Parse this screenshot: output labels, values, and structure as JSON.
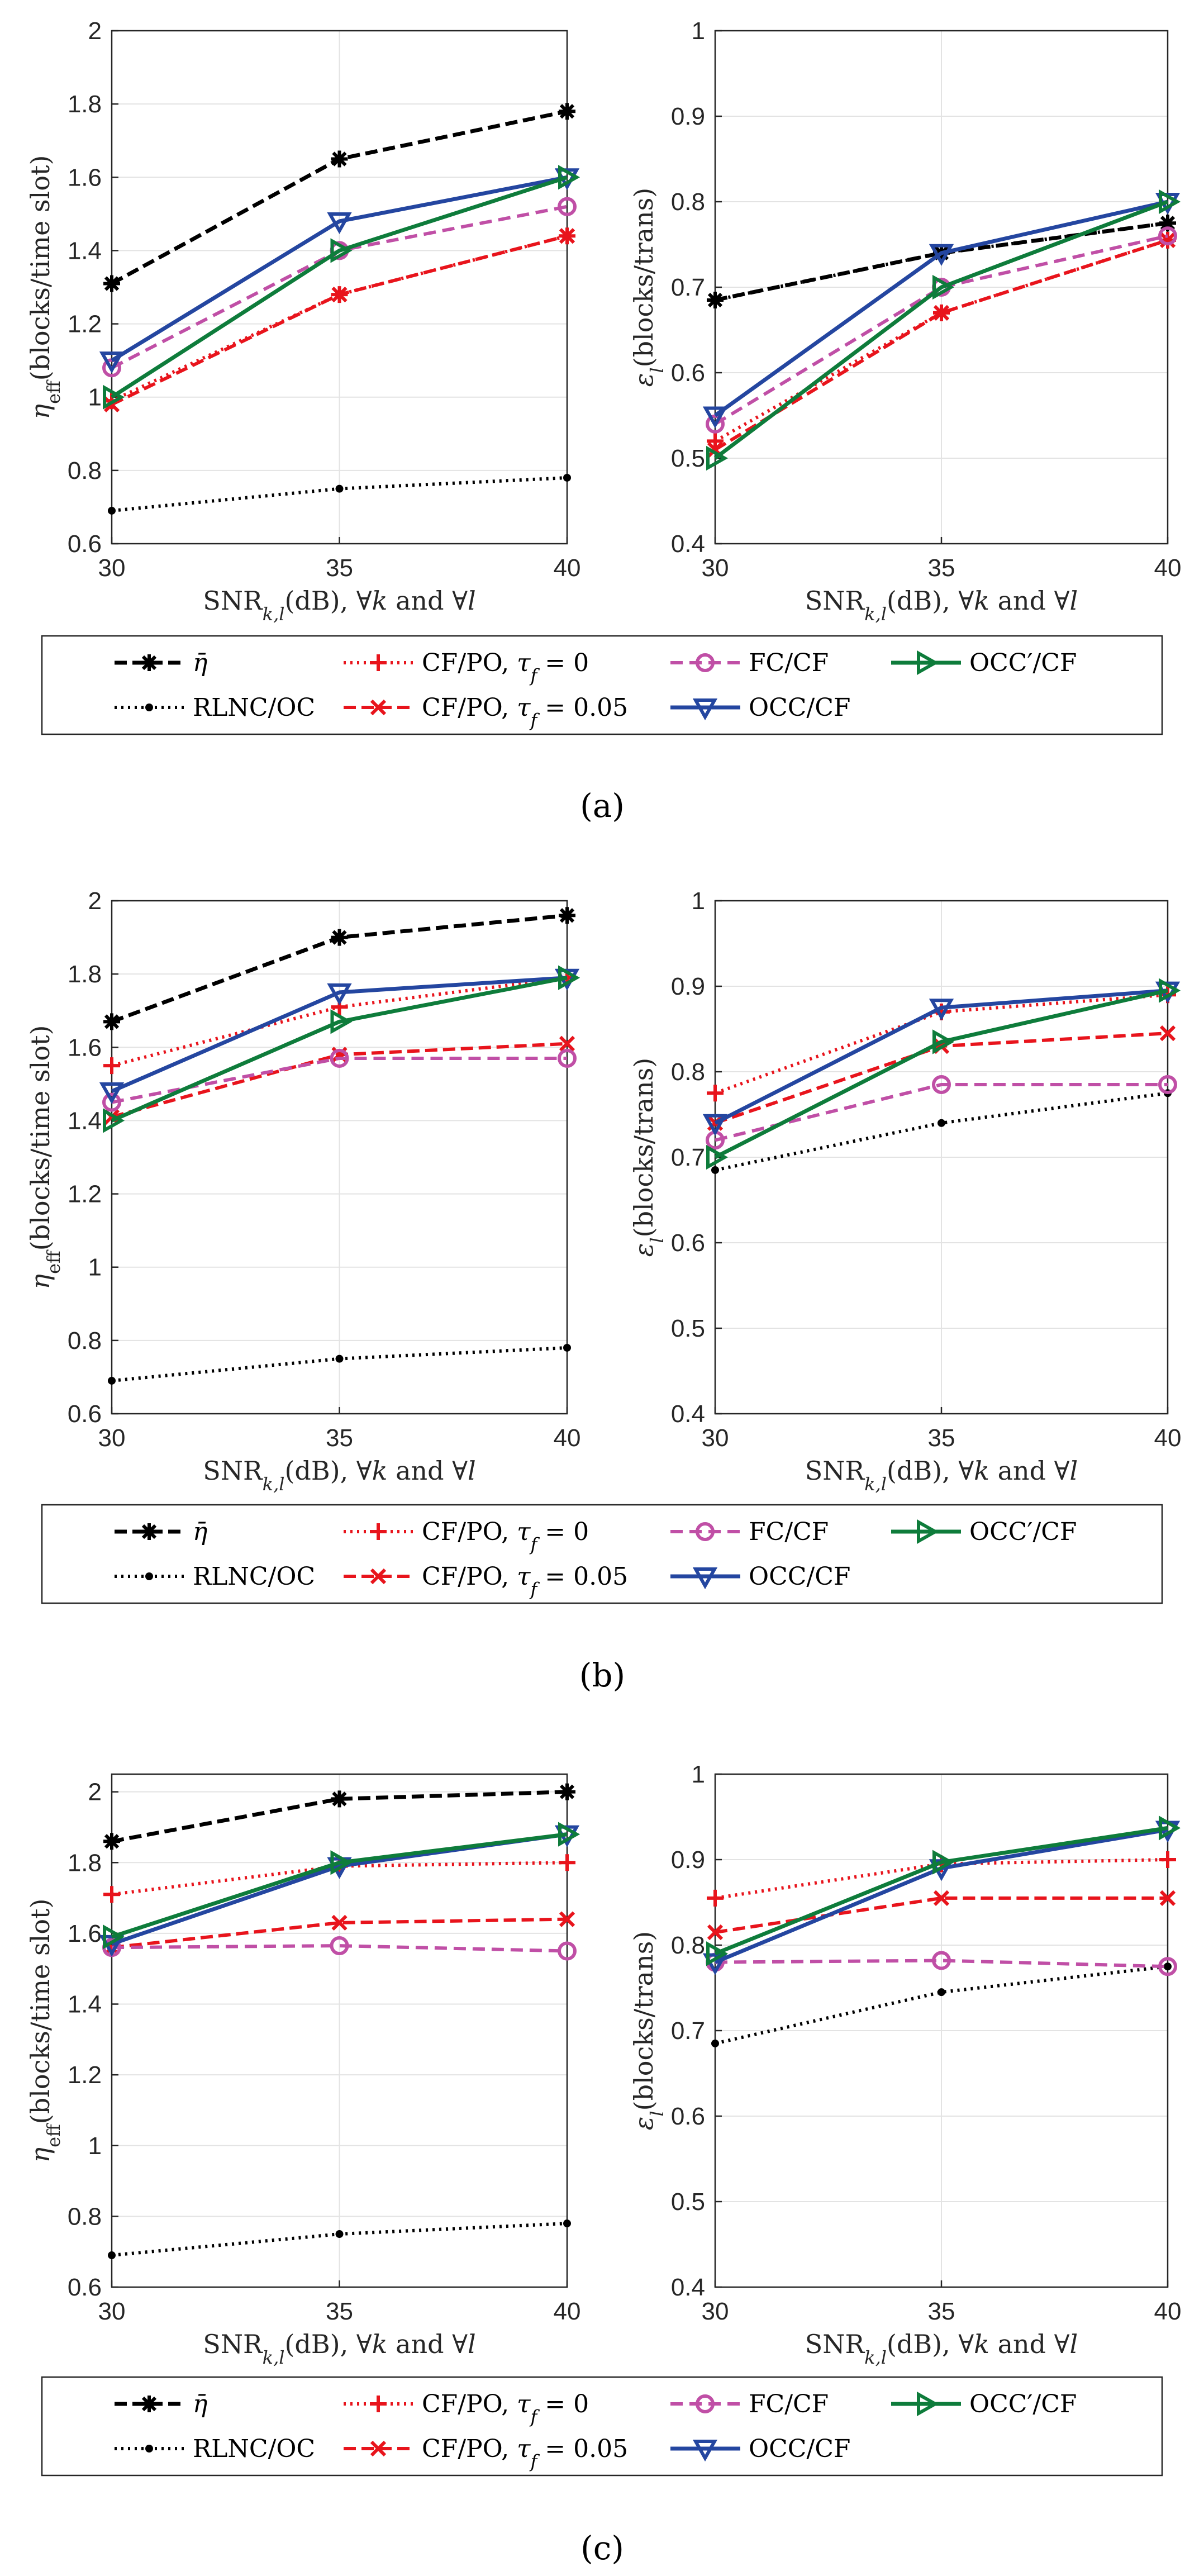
{
  "series_styles": [
    {
      "key": "eta_bar",
      "label": "η̄",
      "color": "#000000",
      "dash": "22,10",
      "marker": "star",
      "width": 7
    },
    {
      "key": "rlnc_oc",
      "label": "RLNC/OC",
      "color": "#000000",
      "dash": "4,8",
      "marker": "dot",
      "width": 6
    },
    {
      "key": "cfpo_0",
      "label": "CF/PO, τf = 0",
      "color": "#e8141c",
      "dash": "4,8",
      "marker": "plus",
      "width": 6
    },
    {
      "key": "cfpo_005",
      "label": "CF/PO, τf = 0.05",
      "color": "#e8141c",
      "dash": "22,10",
      "marker": "x",
      "width": 6
    },
    {
      "key": "fc_cf",
      "label": "FC/CF",
      "color": "#c04fa6",
      "dash": "22,12",
      "marker": "circle",
      "width": 6
    },
    {
      "key": "occ_cf",
      "label": "OCC/CF",
      "color": "#2446a0",
      "dash": "",
      "marker": "tri-down",
      "width": 7
    },
    {
      "key": "occp_cf",
      "label": "OCC′/CF",
      "color": "#0e7c3b",
      "dash": "",
      "marker": "tri-right",
      "width": 7
    }
  ],
  "legend_order": [
    "eta_bar",
    "rlnc_oc",
    "cfpo_0",
    "cfpo_005",
    "fc_cf",
    "occ_cf",
    "occp_cf"
  ],
  "captions": [
    "(a)",
    "(b)",
    "(c)"
  ],
  "chart_data": [
    {
      "type": "line",
      "panel": "a",
      "position": "left",
      "x": [
        30,
        35,
        40
      ],
      "xlim": [
        30,
        40
      ],
      "xticks": [
        30,
        35,
        40
      ],
      "ylim": [
        0.6,
        2
      ],
      "yticks": [
        0.6,
        0.8,
        1,
        1.2,
        1.4,
        1.6,
        1.8,
        2
      ],
      "ytick_labels": [
        "0.6",
        "0.8",
        "1",
        "1.2",
        "1.4",
        "1.6",
        "1.8",
        "2"
      ],
      "ylabel": "ηeff(blocks/time slot)",
      "xlabel": "SNRk,l(dB), ∀k and ∀l",
      "grid": true,
      "series": [
        {
          "key": "eta_bar",
          "values": [
            1.31,
            1.65,
            1.78
          ]
        },
        {
          "key": "rlnc_oc",
          "values": [
            0.69,
            0.75,
            0.78
          ]
        },
        {
          "key": "cfpo_0",
          "values": [
            0.99,
            1.28,
            1.44
          ]
        },
        {
          "key": "cfpo_005",
          "values": [
            0.98,
            1.28,
            1.44
          ]
        },
        {
          "key": "fc_cf",
          "values": [
            1.08,
            1.4,
            1.52
          ]
        },
        {
          "key": "occ_cf",
          "values": [
            1.1,
            1.48,
            1.6
          ]
        },
        {
          "key": "occp_cf",
          "values": [
            1.0,
            1.4,
            1.6
          ]
        }
      ]
    },
    {
      "type": "line",
      "panel": "a",
      "position": "right",
      "x": [
        30,
        35,
        40
      ],
      "xlim": [
        30,
        40
      ],
      "xticks": [
        30,
        35,
        40
      ],
      "ylim": [
        0.4,
        1
      ],
      "yticks": [
        0.4,
        0.5,
        0.6,
        0.7,
        0.8,
        0.9,
        1
      ],
      "ytick_labels": [
        "0.4",
        "0.5",
        "0.6",
        "0.7",
        "0.8",
        "0.9",
        "1"
      ],
      "ylabel": "εl(blocks/trans)",
      "xlabel": "SNRk,l(dB), ∀k and ∀l",
      "grid": true,
      "series": [
        {
          "key": "eta_bar",
          "values": [
            0.685,
            0.74,
            0.775
          ]
        },
        {
          "key": "rlnc_oc",
          "values": [
            0.685,
            0.74,
            0.775
          ]
        },
        {
          "key": "cfpo_0",
          "values": [
            0.52,
            0.67,
            0.755
          ]
        },
        {
          "key": "cfpo_005",
          "values": [
            0.51,
            0.67,
            0.755
          ]
        },
        {
          "key": "fc_cf",
          "values": [
            0.54,
            0.7,
            0.76
          ]
        },
        {
          "key": "occ_cf",
          "values": [
            0.55,
            0.74,
            0.8
          ]
        },
        {
          "key": "occp_cf",
          "values": [
            0.5,
            0.7,
            0.8
          ]
        }
      ]
    },
    {
      "type": "line",
      "panel": "b",
      "position": "left",
      "x": [
        30,
        35,
        40
      ],
      "xlim": [
        30,
        40
      ],
      "xticks": [
        30,
        35,
        40
      ],
      "ylim": [
        0.6,
        2
      ],
      "yticks": [
        0.6,
        0.8,
        1,
        1.2,
        1.4,
        1.6,
        1.8,
        2
      ],
      "ytick_labels": [
        "0.6",
        "0.8",
        "1",
        "1.2",
        "1.4",
        "1.6",
        "1.8",
        "2"
      ],
      "ylabel": "ηeff(blocks/time slot)",
      "xlabel": "SNRk,l(dB), ∀k and ∀l",
      "grid": true,
      "series": [
        {
          "key": "eta_bar",
          "values": [
            1.67,
            1.9,
            1.96
          ]
        },
        {
          "key": "rlnc_oc",
          "values": [
            0.69,
            0.75,
            0.78
          ]
        },
        {
          "key": "cfpo_0",
          "values": [
            1.55,
            1.71,
            1.79
          ]
        },
        {
          "key": "cfpo_005",
          "values": [
            1.41,
            1.58,
            1.61
          ]
        },
        {
          "key": "fc_cf",
          "values": [
            1.45,
            1.57,
            1.57
          ]
        },
        {
          "key": "occ_cf",
          "values": [
            1.48,
            1.75,
            1.79
          ]
        },
        {
          "key": "occp_cf",
          "values": [
            1.4,
            1.67,
            1.79
          ]
        }
      ]
    },
    {
      "type": "line",
      "panel": "b",
      "position": "right",
      "x": [
        30,
        35,
        40
      ],
      "xlim": [
        30,
        40
      ],
      "xticks": [
        30,
        35,
        40
      ],
      "ylim": [
        0.4,
        1
      ],
      "yticks": [
        0.4,
        0.5,
        0.6,
        0.7,
        0.8,
        0.9,
        1
      ],
      "ytick_labels": [
        "0.4",
        "0.5",
        "0.6",
        "0.7",
        "0.8",
        "0.9",
        "1"
      ],
      "ylabel": "εl(blocks/trans)",
      "xlabel": "SNRk,l(dB), ∀k and ∀l",
      "grid": true,
      "series": [
        {
          "key": "rlnc_oc",
          "values": [
            0.685,
            0.74,
            0.775
          ]
        },
        {
          "key": "cfpo_0",
          "values": [
            0.775,
            0.87,
            0.89
          ]
        },
        {
          "key": "cfpo_005",
          "values": [
            0.74,
            0.83,
            0.845
          ]
        },
        {
          "key": "fc_cf",
          "values": [
            0.72,
            0.785,
            0.785
          ]
        },
        {
          "key": "occ_cf",
          "values": [
            0.74,
            0.875,
            0.895
          ]
        },
        {
          "key": "occp_cf",
          "values": [
            0.7,
            0.835,
            0.895
          ]
        }
      ]
    },
    {
      "type": "line",
      "panel": "c",
      "position": "left",
      "x": [
        30,
        35,
        40
      ],
      "xlim": [
        30,
        40
      ],
      "xticks": [
        30,
        35,
        40
      ],
      "ylim": [
        0.6,
        2.05
      ],
      "yticks": [
        0.6,
        0.8,
        1,
        1.2,
        1.4,
        1.6,
        1.8,
        2
      ],
      "ytick_labels": [
        "0.6",
        "0.8",
        "1",
        "1.2",
        "1.4",
        "1.6",
        "1.8",
        "2"
      ],
      "ylabel": "ηeff(blocks/time slot)",
      "xlabel": "SNRk,l(dB), ∀k and ∀l",
      "grid": true,
      "series": [
        {
          "key": "eta_bar",
          "values": [
            1.86,
            1.98,
            2.0
          ]
        },
        {
          "key": "rlnc_oc",
          "values": [
            0.69,
            0.75,
            0.78
          ]
        },
        {
          "key": "cfpo_0",
          "values": [
            1.71,
            1.79,
            1.8
          ]
        },
        {
          "key": "cfpo_005",
          "values": [
            1.56,
            1.63,
            1.64
          ]
        },
        {
          "key": "fc_cf",
          "values": [
            1.56,
            1.565,
            1.55
          ]
        },
        {
          "key": "occ_cf",
          "values": [
            1.57,
            1.79,
            1.88
          ]
        },
        {
          "key": "occp_cf",
          "values": [
            1.59,
            1.8,
            1.88
          ]
        }
      ]
    },
    {
      "type": "line",
      "panel": "c",
      "position": "right",
      "x": [
        30,
        35,
        40
      ],
      "xlim": [
        30,
        40
      ],
      "xticks": [
        30,
        35,
        40
      ],
      "ylim": [
        0.4,
        1
      ],
      "yticks": [
        0.4,
        0.5,
        0.6,
        0.7,
        0.8,
        0.9,
        1
      ],
      "ytick_labels": [
        "0.4",
        "0.5",
        "0.6",
        "0.7",
        "0.8",
        "0.9",
        "1"
      ],
      "ylabel": "εl(blocks/trans)",
      "xlabel": "SNRk,l(dB), ∀k and ∀l",
      "grid": true,
      "series": [
        {
          "key": "rlnc_oc",
          "values": [
            0.685,
            0.745,
            0.775
          ]
        },
        {
          "key": "cfpo_0",
          "values": [
            0.855,
            0.895,
            0.9
          ]
        },
        {
          "key": "cfpo_005",
          "values": [
            0.815,
            0.855,
            0.855
          ]
        },
        {
          "key": "fc_cf",
          "values": [
            0.78,
            0.782,
            0.775
          ]
        },
        {
          "key": "occ_cf",
          "values": [
            0.78,
            0.89,
            0.935
          ]
        },
        {
          "key": "occp_cf",
          "values": [
            0.79,
            0.897,
            0.937
          ]
        }
      ]
    }
  ]
}
